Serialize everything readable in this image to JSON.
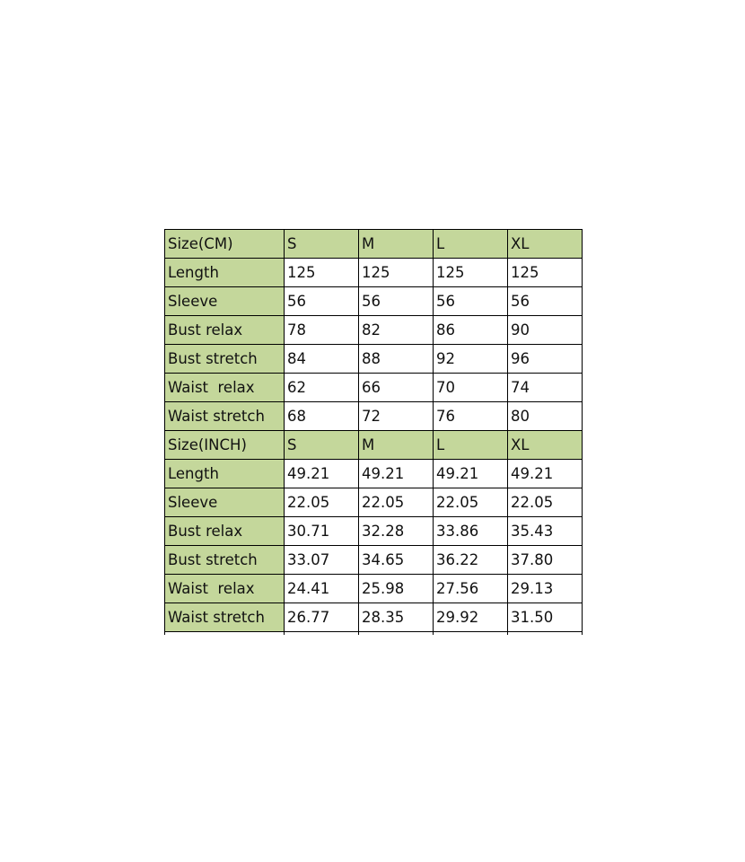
{
  "colors": {
    "header_fill": "#c4d79b",
    "border": "#000000"
  },
  "cm_table": {
    "header": [
      "Size(CM)",
      "S",
      "M",
      "L",
      "XL"
    ],
    "rows": [
      [
        "Length",
        "125",
        "125",
        "125",
        "125"
      ],
      [
        "Sleeve",
        "56",
        "56",
        "56",
        "56"
      ],
      [
        "Bust relax",
        "78",
        "82",
        "86",
        "90"
      ],
      [
        "Bust stretch",
        "84",
        "88",
        "92",
        "96"
      ],
      [
        "Waist  relax",
        "62",
        "66",
        "70",
        "74"
      ],
      [
        "Waist stretch",
        "68",
        "72",
        "76",
        "80"
      ]
    ]
  },
  "inch_table": {
    "header": [
      "Size(INCH)",
      "S",
      "M",
      "L",
      "XL"
    ],
    "rows": [
      [
        "Length",
        "49.21",
        "49.21",
        "49.21",
        "49.21"
      ],
      [
        "Sleeve",
        "22.05",
        "22.05",
        "22.05",
        "22.05"
      ],
      [
        "Bust relax",
        "30.71",
        "32.28",
        "33.86",
        "35.43"
      ],
      [
        "Bust stretch",
        "33.07",
        "34.65",
        "36.22",
        "37.80"
      ],
      [
        "Waist  relax",
        "24.41",
        "25.98",
        "27.56",
        "29.13"
      ],
      [
        "Waist stretch",
        "26.77",
        "28.35",
        "29.92",
        "31.50"
      ]
    ]
  }
}
